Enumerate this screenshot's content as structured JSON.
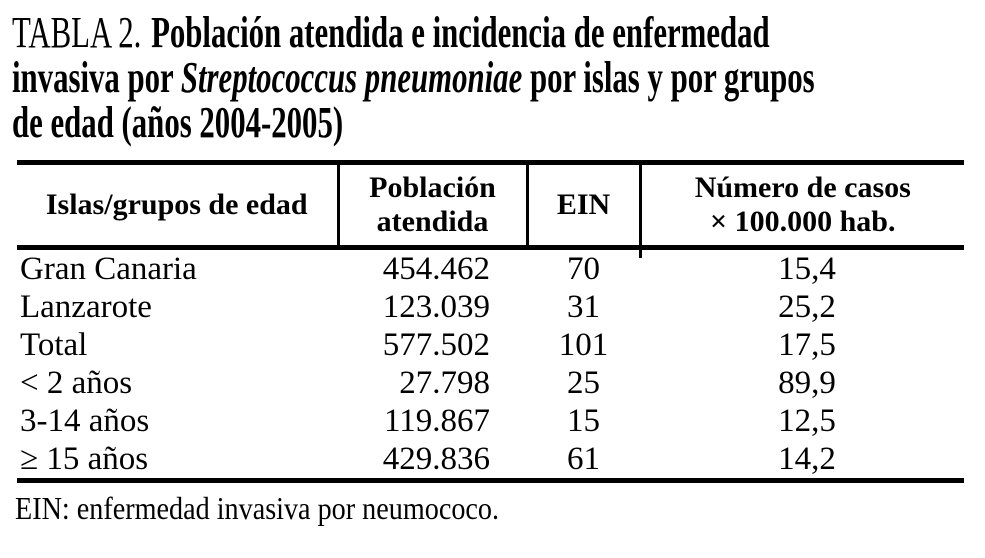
{
  "title": {
    "label": "TABLA 2.",
    "line1": "Población atendida e incidencia de enfermedad",
    "line2_pre": "invasiva por ",
    "line2_italic": "Streptococcus pneumoniae",
    "line2_post": " por islas y por grupos",
    "line3": "de edad (años 2004-2005)"
  },
  "table": {
    "header": {
      "col1": "Islas/grupos de edad",
      "col2_line1": "Población",
      "col2_line2": "atendida",
      "col3": "EIN",
      "col4_line1": "Número de casos",
      "col4_line2": "× 100.000 hab."
    },
    "rows": [
      {
        "label": "Gran Canaria",
        "poblacion": "454.462",
        "ein": "70",
        "casos": "15,4"
      },
      {
        "label": "Lanzarote",
        "poblacion": "123.039",
        "ein": "31",
        "casos": "25,2"
      },
      {
        "label": "Total",
        "poblacion": "577.502",
        "ein": "101",
        "casos": "17,5"
      },
      {
        "label": "< 2 años",
        "poblacion": "27.798",
        "ein": "25",
        "casos": "89,9"
      },
      {
        "label": "3-14 años",
        "poblacion": "119.867",
        "ein": "15",
        "casos": "12,5"
      },
      {
        "label": "≥ 15 años",
        "poblacion": "429.836",
        "ein": "61",
        "casos": "14,2"
      }
    ]
  },
  "footnote": "EIN: enfermedad invasiva por neumococo."
}
